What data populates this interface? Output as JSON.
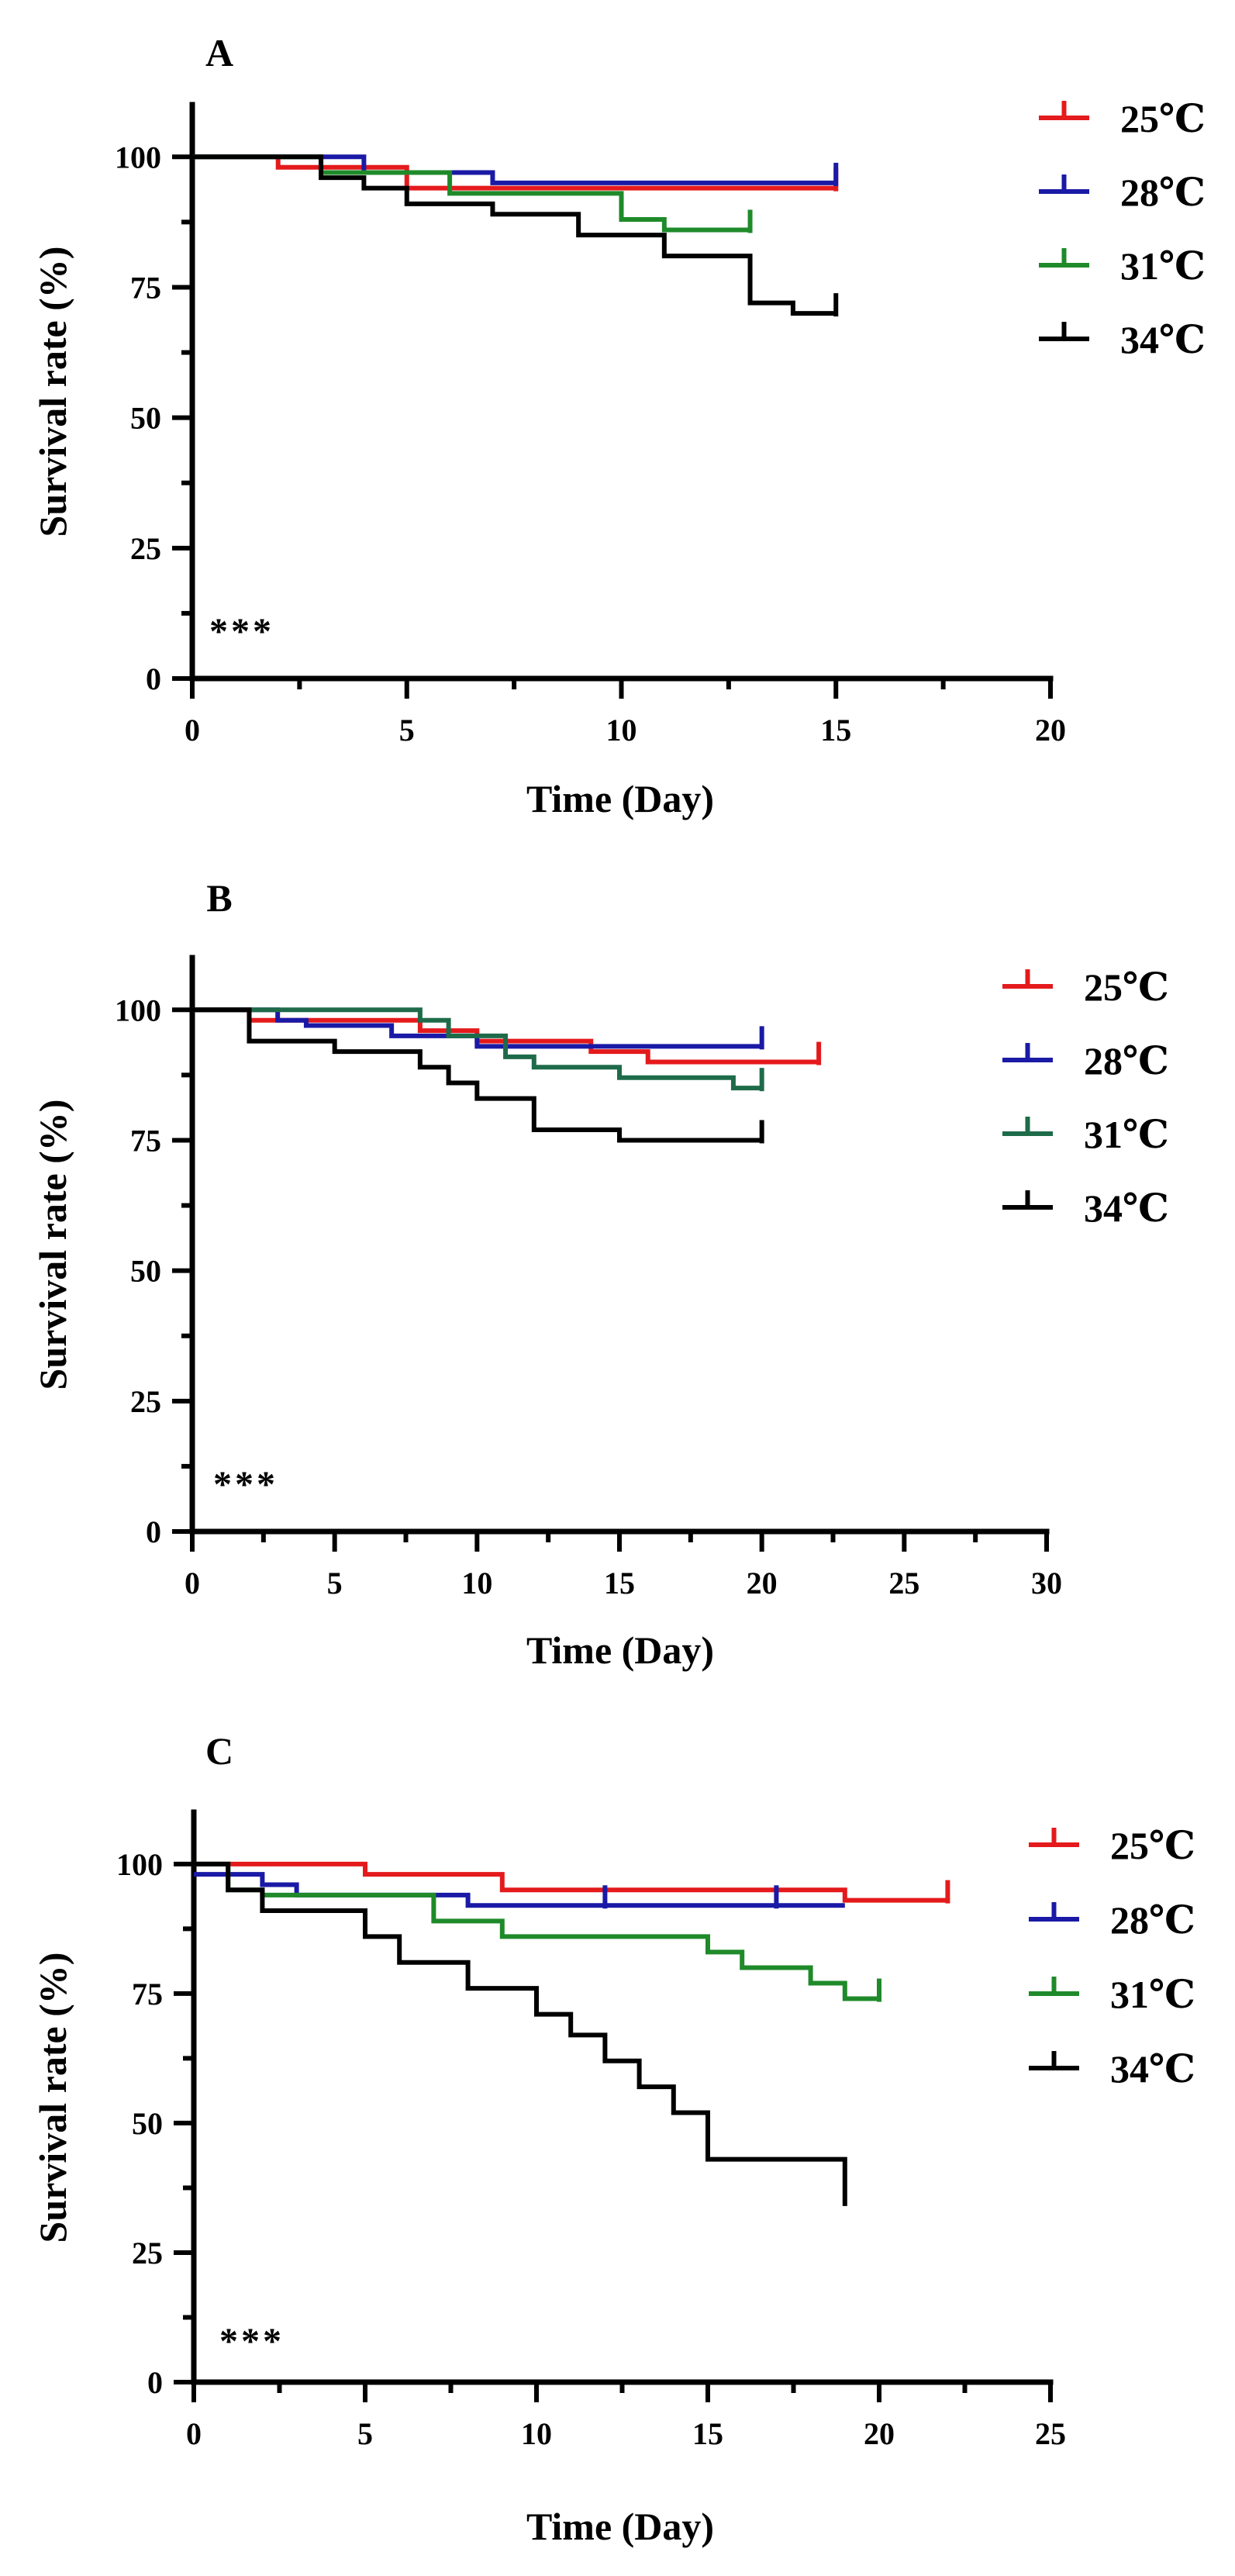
{
  "colors": {
    "25C": "#e41a1c",
    "28C": "#1a1aa6",
    "31C_A": "#1f8a2a",
    "31C_B": "#1e6b4a",
    "31C_C": "#1f8a2a",
    "34C": "#000000"
  },
  "chart_data": [
    {
      "type": "line",
      "subtype": "kaplan-meier-step",
      "panel": "A",
      "xlabel": "Time (Day)",
      "ylabel": "Survival rate (%)",
      "xlim": [
        0,
        20
      ],
      "ylim": [
        0,
        110
      ],
      "xticks": [
        0,
        5,
        10,
        15,
        20
      ],
      "yticks": [
        0,
        25,
        50,
        75,
        100
      ],
      "annotation": "***",
      "legend_position": "top-right",
      "grid": false,
      "series": [
        {
          "name": "25℃",
          "color_key": "25C",
          "x": [
            0,
            2,
            4,
            5,
            15
          ],
          "y": [
            100,
            98,
            98,
            94,
            94
          ],
          "censor": [
            [
              15,
              94
            ]
          ]
        },
        {
          "name": "28℃",
          "color_key": "28C",
          "x": [
            0,
            4,
            7,
            15
          ],
          "y": [
            100,
            97,
            95,
            95
          ],
          "censor": [
            [
              15,
              95
            ]
          ]
        },
        {
          "name": "31℃",
          "color_key": "31C_A",
          "x": [
            0,
            3,
            6,
            10,
            11,
            13
          ],
          "y": [
            100,
            97,
            93,
            88,
            86,
            86
          ],
          "censor": [
            [
              13,
              86
            ]
          ]
        },
        {
          "name": "34℃",
          "color_key": "34C",
          "x": [
            0,
            3,
            4,
            5,
            7,
            9,
            11,
            13,
            14,
            15
          ],
          "y": [
            100,
            96,
            94,
            91,
            89,
            85,
            81,
            72,
            70,
            70
          ],
          "censor": [
            [
              15,
              70
            ]
          ]
        }
      ]
    },
    {
      "type": "line",
      "subtype": "kaplan-meier-step",
      "panel": "B",
      "xlabel": "Time (Day)",
      "ylabel": "Survival rate (%)",
      "xlim": [
        0,
        30
      ],
      "ylim": [
        0,
        110
      ],
      "xticks": [
        0,
        5,
        10,
        15,
        20,
        25,
        30
      ],
      "yticks": [
        0,
        25,
        50,
        75,
        100
      ],
      "annotation": "***",
      "legend_position": "top-right",
      "grid": false,
      "series": [
        {
          "name": "25℃",
          "color_key": "25C",
          "x": [
            0,
            2,
            8,
            10,
            14,
            16,
            22
          ],
          "y": [
            100,
            98,
            96,
            94,
            92,
            90,
            90
          ],
          "censor": [
            [
              22,
              90
            ]
          ]
        },
        {
          "name": "28℃",
          "color_key": "28C",
          "x": [
            0,
            3,
            4,
            7,
            10,
            14,
            20
          ],
          "y": [
            100,
            98,
            97,
            95,
            93,
            93,
            93
          ],
          "censor": [
            [
              20,
              93
            ]
          ]
        },
        {
          "name": "31℃",
          "color_key": "31C_B",
          "x": [
            0,
            8,
            9,
            11,
            12,
            15,
            19,
            20
          ],
          "y": [
            100,
            98,
            95,
            91,
            89,
            87,
            85,
            85
          ],
          "censor": [
            [
              20,
              85
            ]
          ]
        },
        {
          "name": "34℃",
          "color_key": "34C",
          "x": [
            0,
            2,
            5,
            8,
            9,
            10,
            12,
            15,
            20
          ],
          "y": [
            100,
            94,
            92,
            89,
            86,
            83,
            77,
            75,
            75
          ],
          "censor": [
            [
              20,
              75
            ]
          ]
        }
      ]
    },
    {
      "type": "line",
      "subtype": "kaplan-meier-step",
      "panel": "C",
      "xlabel": "Time (Day)",
      "ylabel": "Survival rate (%)",
      "xlim": [
        0,
        25
      ],
      "ylim": [
        0,
        110
      ],
      "xticks": [
        0,
        5,
        10,
        15,
        20,
        25
      ],
      "yticks": [
        0,
        25,
        50,
        75,
        100
      ],
      "annotation": "***",
      "legend_position": "top-right",
      "grid": false,
      "series": [
        {
          "name": "25℃",
          "color_key": "25C",
          "x": [
            0,
            5,
            9,
            19,
            22
          ],
          "y": [
            100,
            98,
            95,
            93,
            93
          ],
          "censor": [
            [
              22,
              93
            ]
          ]
        },
        {
          "name": "28℃",
          "color_key": "28C",
          "x": [
            0,
            2,
            3,
            4,
            8,
            19
          ],
          "y": [
            98,
            96,
            94,
            94,
            92,
            92
          ],
          "censor": [
            [
              12,
              92
            ],
            [
              17,
              92
            ]
          ]
        },
        {
          "name": "31℃",
          "color_key": "31C_C",
          "x": [
            0,
            1,
            2,
            7,
            9,
            15,
            16,
            18,
            19,
            20
          ],
          "y": [
            100,
            95,
            94,
            89,
            86,
            83,
            80,
            77,
            74,
            74
          ],
          "censor": [
            [
              20,
              74
            ]
          ]
        },
        {
          "name": "34℃",
          "color_key": "34C",
          "x": [
            0,
            1,
            2,
            5,
            6,
            8,
            10,
            11,
            12,
            13,
            14,
            15,
            19
          ],
          "y": [
            100,
            95,
            91,
            86,
            81,
            76,
            71,
            67,
            62,
            57,
            52,
            43,
            43
          ],
          "end_y": 34
        }
      ]
    }
  ]
}
